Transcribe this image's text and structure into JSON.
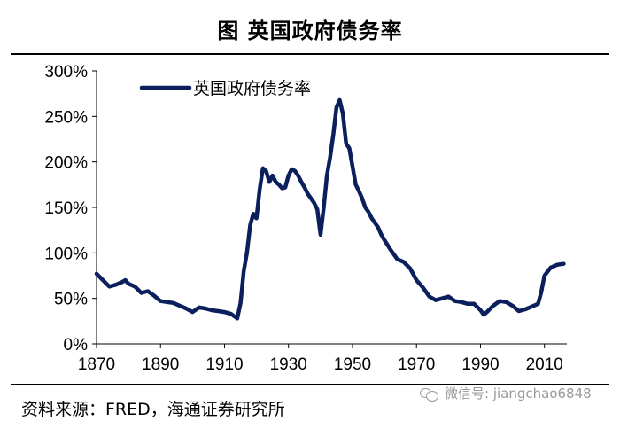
{
  "title": "图  英国政府债务率",
  "source": "资料来源：FRED，海通证券研究所",
  "watermark": "微信号: jiangchao6848",
  "colors": {
    "series": "#0b1f5c",
    "axis": "#000000",
    "watermark": "#9a9a9a"
  },
  "chart_data": {
    "type": "line",
    "title": "图  英国政府债务率",
    "xlabel": "",
    "ylabel": "",
    "xlim": [
      1870,
      2017
    ],
    "ylim": [
      0,
      300
    ],
    "x_ticks": [
      "1870",
      "1890",
      "1910",
      "1930",
      "1950",
      "1970",
      "1990",
      "2010"
    ],
    "x_tick_values": [
      1870,
      1890,
      1910,
      1930,
      1950,
      1970,
      1990,
      2010
    ],
    "y_ticks": [
      "0%",
      "50%",
      "100%",
      "150%",
      "200%",
      "250%",
      "300%"
    ],
    "y_tick_values": [
      0,
      50,
      100,
      150,
      200,
      250,
      300
    ],
    "grid": false,
    "legend": "top-left",
    "series": [
      {
        "name": "英国政府债务率",
        "color": "#0b1f5c",
        "x": [
          1870,
          1872,
          1874,
          1876,
          1878,
          1879,
          1880,
          1882,
          1884,
          1886,
          1888,
          1890,
          1892,
          1894,
          1896,
          1898,
          1900,
          1902,
          1904,
          1906,
          1908,
          1910,
          1912,
          1914,
          1915,
          1916,
          1917,
          1918,
          1919,
          1920,
          1921,
          1922,
          1923,
          1924,
          1925,
          1926,
          1927,
          1928,
          1929,
          1930,
          1931,
          1932,
          1933,
          1934,
          1935,
          1936,
          1937,
          1938,
          1939,
          1940,
          1941,
          1942,
          1943,
          1944,
          1945,
          1946,
          1947,
          1948,
          1949,
          1950,
          1951,
          1952,
          1953,
          1954,
          1955,
          1956,
          1957,
          1958,
          1959,
          1960,
          1962,
          1964,
          1966,
          1968,
          1970,
          1972,
          1974,
          1976,
          1978,
          1980,
          1982,
          1984,
          1986,
          1988,
          1990,
          1991,
          1992,
          1994,
          1996,
          1998,
          2000,
          2002,
          2004,
          2006,
          2008,
          2009,
          2010,
          2012,
          2014,
          2016
        ],
        "y": [
          77,
          70,
          63,
          65,
          68,
          70,
          66,
          63,
          56,
          58,
          53,
          47,
          46,
          45,
          42,
          39,
          35,
          40,
          39,
          37,
          36,
          35,
          33,
          28,
          45,
          80,
          100,
          130,
          143,
          138,
          170,
          193,
          190,
          178,
          185,
          178,
          175,
          171,
          172,
          185,
          192,
          190,
          185,
          178,
          172,
          165,
          160,
          155,
          148,
          120,
          150,
          185,
          205,
          230,
          260,
          268,
          253,
          220,
          215,
          195,
          175,
          168,
          160,
          150,
          145,
          138,
          133,
          128,
          120,
          114,
          103,
          93,
          90,
          83,
          70,
          62,
          52,
          48,
          50,
          52,
          47,
          46,
          44,
          44,
          37,
          32,
          35,
          42,
          47,
          46,
          42,
          36,
          38,
          41,
          44,
          57,
          75,
          84,
          87,
          88
        ]
      }
    ]
  }
}
